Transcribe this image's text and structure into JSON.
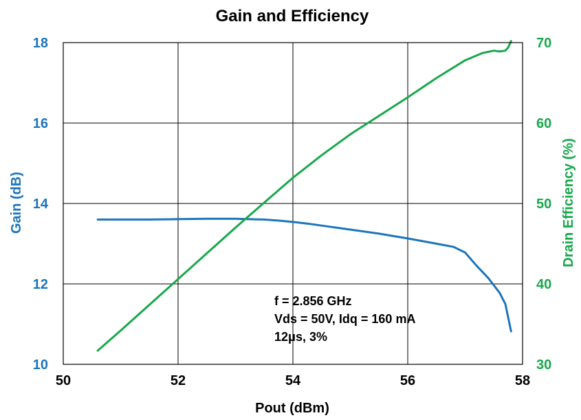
{
  "chart_data": {
    "type": "line",
    "title": "Gain and Efficiency",
    "xlabel": "Pout (dBm)",
    "ylabel_left": "Gain (dB)",
    "ylabel_right": "Drain Efficiency (%)",
    "xlim": [
      50,
      58
    ],
    "ylim_left": [
      10,
      18
    ],
    "ylim_right": [
      30,
      70
    ],
    "x_ticks": [
      "50",
      "52",
      "54",
      "56",
      "58"
    ],
    "y_left_ticks": [
      "10",
      "12",
      "14",
      "16",
      "18"
    ],
    "y_right_ticks": [
      "30",
      "40",
      "50",
      "60",
      "70"
    ],
    "grid": true,
    "annotations": [
      "f = 2.856 GHz",
      "Vds = 50V, Idq = 160 mA",
      "12μs, 3%"
    ],
    "colors": {
      "gain": "#1a75bc",
      "efficiency": "#16a84a",
      "left_axis_text": "#1a75bc",
      "right_axis_text": "#16a84a"
    },
    "series": [
      {
        "name": "Gain",
        "axis": "left",
        "x": [
          50.6,
          51.0,
          51.5,
          52.0,
          52.5,
          53.0,
          53.5,
          53.8,
          54.0,
          54.3,
          54.6,
          55.0,
          55.5,
          56.0,
          56.5,
          56.8,
          57.0,
          57.2,
          57.4,
          57.6,
          57.7,
          57.8
        ],
        "y": [
          13.6,
          13.6,
          13.6,
          13.61,
          13.62,
          13.62,
          13.6,
          13.57,
          13.54,
          13.49,
          13.43,
          13.35,
          13.25,
          13.13,
          13.0,
          12.92,
          12.78,
          12.45,
          12.15,
          11.78,
          11.5,
          10.82
        ]
      },
      {
        "name": "Drain Efficiency",
        "axis": "right",
        "x": [
          50.6,
          51.0,
          51.5,
          52.0,
          52.5,
          53.0,
          53.5,
          54.0,
          54.5,
          55.0,
          55.5,
          56.0,
          56.5,
          57.0,
          57.3,
          57.5,
          57.6,
          57.7,
          57.75,
          57.8
        ],
        "y": [
          31.7,
          34.2,
          37.4,
          40.6,
          43.8,
          47.0,
          50.1,
          53.2,
          56.0,
          58.6,
          60.9,
          63.2,
          65.6,
          67.8,
          68.7,
          69.0,
          68.9,
          69.0,
          69.4,
          70.2
        ]
      }
    ]
  }
}
